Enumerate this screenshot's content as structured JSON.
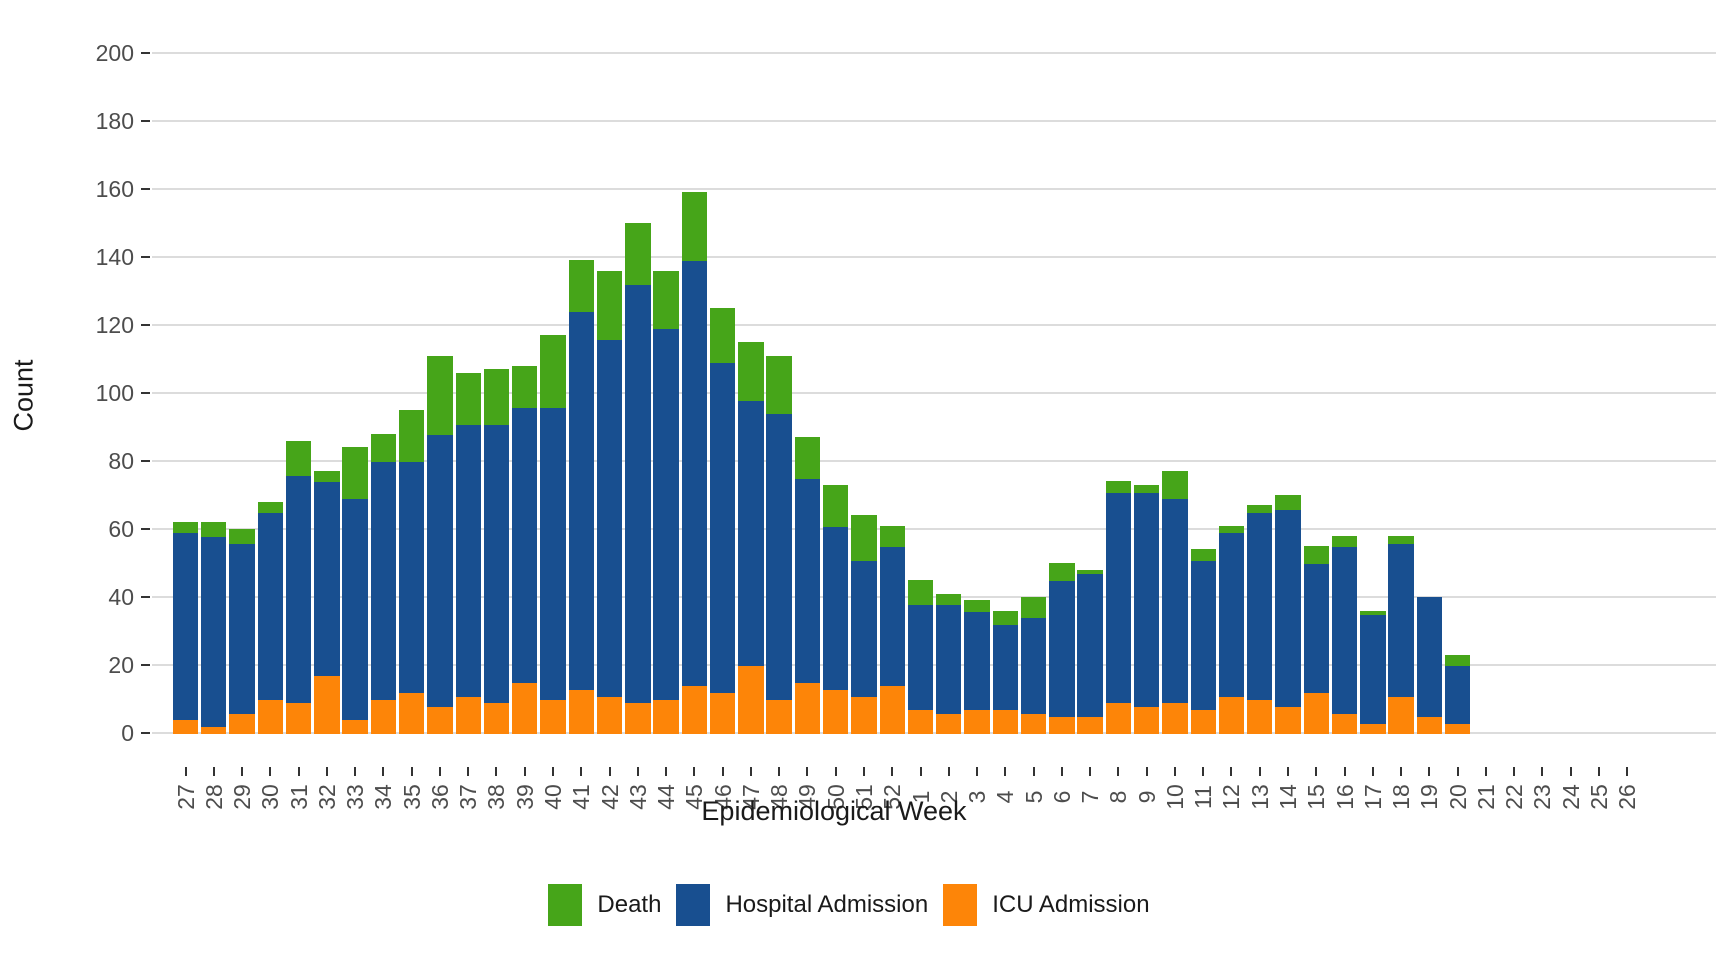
{
  "figure": {
    "y_axis_title": "Count",
    "x_axis_title": "Epidemiological Week"
  },
  "legend": {
    "items": [
      {
        "label": "Death",
        "color": "#46a519"
      },
      {
        "label": "Hospital Admission",
        "color": "#184f90"
      },
      {
        "label": "ICU Admission",
        "color": "#fd8508"
      }
    ]
  },
  "chart_data": {
    "type": "bar",
    "stacked": true,
    "title": "",
    "xlabel": "Epidemiological Week",
    "ylabel": "Count",
    "ylim": [
      0,
      200
    ],
    "yticks": [
      0,
      20,
      40,
      60,
      80,
      100,
      120,
      140,
      160,
      180,
      200
    ],
    "grid": "horizontal-major-only",
    "legend_position": "bottom",
    "categories": [
      "27",
      "28",
      "29",
      "30",
      "31",
      "32",
      "33",
      "34",
      "35",
      "36",
      "37",
      "38",
      "39",
      "40",
      "41",
      "42",
      "43",
      "44",
      "45",
      "46",
      "47",
      "48",
      "49",
      "50",
      "51",
      "52",
      "1",
      "2",
      "3",
      "4",
      "5",
      "6",
      "7",
      "8",
      "9",
      "10",
      "11",
      "12",
      "13",
      "14",
      "15",
      "16",
      "17",
      "18",
      "19",
      "20",
      "21",
      "22",
      "23",
      "24",
      "25",
      "26"
    ],
    "series": [
      {
        "name": "ICU Admission",
        "color": "#fd8508",
        "stack_position": "bottom",
        "values": [
          4,
          2,
          6,
          10,
          9,
          17,
          4,
          10,
          12,
          8,
          11,
          9,
          15,
          10,
          13,
          11,
          9,
          10,
          14,
          12,
          20,
          10,
          15,
          13,
          11,
          14,
          7,
          6,
          7,
          7,
          6,
          5,
          5,
          9,
          8,
          9,
          7,
          11,
          10,
          8,
          12,
          6,
          3,
          11,
          5,
          3,
          0,
          0,
          0,
          0,
          0,
          0
        ]
      },
      {
        "name": "Hospital Admission",
        "color": "#184f90",
        "stack_position": "middle",
        "values": [
          55,
          56,
          50,
          55,
          67,
          57,
          65,
          70,
          68,
          80,
          80,
          82,
          81,
          86,
          111,
          105,
          123,
          109,
          125,
          97,
          78,
          84,
          60,
          48,
          40,
          41,
          31,
          32,
          29,
          25,
          28,
          40,
          42,
          62,
          63,
          60,
          44,
          48,
          55,
          58,
          38,
          49,
          32,
          45,
          35,
          17,
          0,
          0,
          0,
          0,
          0,
          0
        ]
      },
      {
        "name": "Death",
        "color": "#46a519",
        "stack_position": "top",
        "values": [
          3,
          4,
          4,
          3,
          10,
          3,
          15,
          8,
          15,
          23,
          15,
          16,
          12,
          21,
          15,
          20,
          18,
          17,
          20,
          16,
          17,
          17,
          12,
          12,
          13,
          6,
          7,
          3,
          3,
          4,
          6,
          5,
          1,
          3,
          2,
          8,
          3,
          2,
          2,
          4,
          5,
          3,
          1,
          2,
          0,
          3,
          0,
          0,
          0,
          0,
          0,
          0
        ]
      }
    ]
  }
}
